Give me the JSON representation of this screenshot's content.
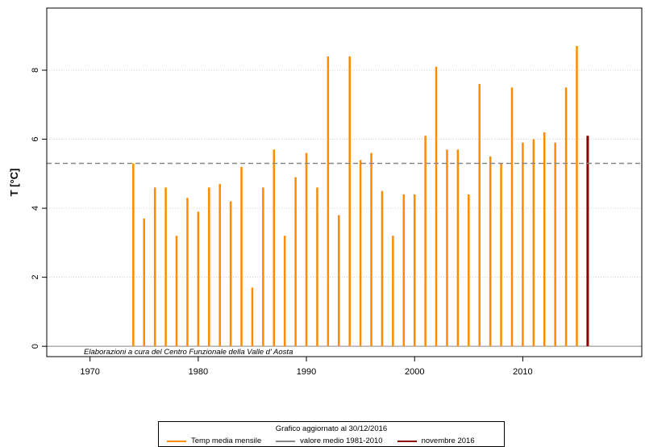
{
  "chart_data": {
    "type": "bar",
    "ylabel": "T [°C]",
    "xlim": [
      1966,
      2021
    ],
    "ylim": [
      -0.3,
      9.8
    ],
    "x_ticks": [
      1970,
      1980,
      1990,
      2000,
      2010
    ],
    "y_ticks": [
      0,
      2,
      4,
      6,
      8
    ],
    "grid": true,
    "mean_1981_2010": 5.3,
    "series": [
      {
        "name": "Temp media mensile",
        "color": "#ff8c00",
        "x": [
          1974,
          1975,
          1976,
          1977,
          1978,
          1979,
          1980,
          1981,
          1982,
          1983,
          1984,
          1985,
          1986,
          1987,
          1988,
          1989,
          1990,
          1991,
          1992,
          1993,
          1994,
          1995,
          1996,
          1997,
          1998,
          1999,
          2000,
          2001,
          2002,
          2003,
          2004,
          2005,
          2006,
          2007,
          2008,
          2009,
          2010,
          2011,
          2012,
          2013,
          2014,
          2015
        ],
        "values": [
          5.3,
          3.7,
          4.6,
          4.6,
          3.2,
          4.3,
          3.9,
          4.6,
          4.7,
          4.2,
          5.2,
          1.7,
          4.6,
          5.7,
          3.2,
          4.9,
          5.6,
          4.6,
          8.4,
          3.8,
          8.4,
          5.4,
          5.6,
          4.5,
          3.2,
          4.4,
          4.4,
          6.1,
          8.1,
          5.7,
          5.7,
          4.4,
          7.6,
          5.5,
          5.3,
          7.5,
          5.9,
          6.0,
          6.2,
          5.9,
          7.5,
          8.7
        ]
      },
      {
        "name": "novembre 2016",
        "color": "#8b0000",
        "x": [
          2016
        ],
        "values": [
          6.1
        ]
      }
    ],
    "annotation": "Elaborazioni a cura del Centro Funzionale della Valle d' Aosta",
    "legend": {
      "title": "Grafico aggiornato al 30/12/2016",
      "placement": "bottom",
      "items": [
        {
          "label": "Temp media mensile",
          "color": "#ff8c00"
        },
        {
          "label": "valore medio 1981-2010",
          "color": "#888888"
        },
        {
          "label": "novembre 2016",
          "color": "#8b0000"
        }
      ]
    }
  }
}
